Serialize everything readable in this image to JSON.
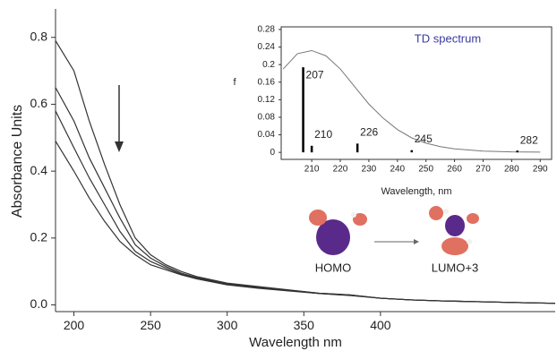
{
  "chart_data": [
    {
      "type": "line",
      "xlabel": "Wavelength nm",
      "ylabel": "Absorbance Units",
      "x": [
        188,
        200,
        210,
        220,
        230,
        240,
        250,
        260,
        270,
        280,
        300,
        320,
        340,
        360,
        380,
        400,
        420,
        440,
        460,
        480,
        500,
        514
      ],
      "series": [
        {
          "color": "#333333",
          "values": [
            0.79,
            0.7,
            0.55,
            0.42,
            0.3,
            0.2,
            0.15,
            0.12,
            0.1,
            0.085,
            0.065,
            0.055,
            0.045,
            0.035,
            0.03,
            0.02,
            0.015,
            0.012,
            0.01,
            0.008,
            0.006,
            0.005
          ]
        },
        {
          "color": "#333333",
          "values": [
            0.65,
            0.55,
            0.44,
            0.35,
            0.26,
            0.18,
            0.14,
            0.115,
            0.095,
            0.082,
            0.063,
            0.053,
            0.044,
            0.035,
            0.03,
            0.02,
            0.015,
            0.012,
            0.01,
            0.008,
            0.006,
            0.005
          ]
        },
        {
          "color": "#333333",
          "values": [
            0.58,
            0.47,
            0.38,
            0.3,
            0.22,
            0.16,
            0.13,
            0.11,
            0.092,
            0.08,
            0.062,
            0.052,
            0.043,
            0.034,
            0.029,
            0.02,
            0.015,
            0.012,
            0.01,
            0.008,
            0.006,
            0.005
          ]
        },
        {
          "color": "#333333",
          "values": [
            0.49,
            0.4,
            0.32,
            0.25,
            0.19,
            0.15,
            0.12,
            0.105,
            0.09,
            0.078,
            0.06,
            0.05,
            0.042,
            0.034,
            0.028,
            0.02,
            0.015,
            0.012,
            0.01,
            0.008,
            0.006,
            0.005
          ]
        }
      ],
      "xlim": [
        188,
        514
      ],
      "xticks": [
        200,
        250,
        300,
        350,
        400
      ],
      "ylim": [
        -0.02,
        0.885
      ],
      "yticks": [
        {
          "value": 0,
          "label": "0.0"
        },
        0.2,
        0.4,
        0.6,
        0.8
      ],
      "annotations": [
        "HOMO",
        "LUMO+3"
      ]
    },
    {
      "type": "stick",
      "annotation": "TD spectrum",
      "xlabel": "Wavelength, nm",
      "ylabel": "f",
      "x": [
        207,
        210,
        226,
        245,
        282
      ],
      "values": [
        0.194,
        0.015,
        0.02,
        0.005,
        0.002
      ],
      "color": "#000000",
      "curve": {
        "color": "#777777",
        "x": [
          200,
          205,
          210,
          215,
          220,
          225,
          230,
          235,
          240,
          245,
          250,
          255,
          260,
          270,
          280,
          290
        ],
        "values": [
          0.19,
          0.225,
          0.232,
          0.22,
          0.19,
          0.15,
          0.11,
          0.078,
          0.052,
          0.033,
          0.021,
          0.013,
          0.008,
          0.003,
          0.001,
          0.0005
        ]
      },
      "xlim": [
        199.3,
        294
      ],
      "xticks": [
        210,
        220,
        230,
        240,
        250,
        260,
        270,
        280,
        290
      ],
      "ylim": [
        -0.016,
        0.286
      ],
      "yticks": [
        0,
        0.04,
        0.08,
        0.12,
        0.16,
        0.2,
        0.24,
        0.28
      ]
    }
  ]
}
